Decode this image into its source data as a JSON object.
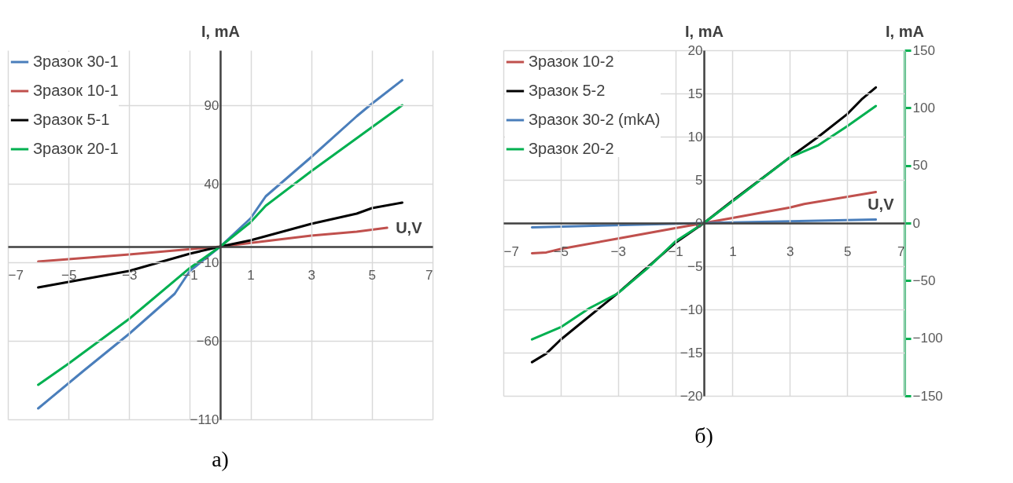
{
  "chart_data": [
    {
      "type": "line",
      "title": "а)",
      "xlabel": "U,V",
      "ylabel": "I, mA",
      "xlim": [
        -7,
        7
      ],
      "xticks": [
        -7,
        -5,
        -3,
        -1,
        1,
        3,
        5,
        7
      ],
      "ylim": [
        -110,
        125
      ],
      "yticks": [
        -110,
        -60,
        -10,
        40,
        90
      ],
      "grid": true,
      "legend": "top left",
      "line_style": "solid",
      "series": [
        {
          "name": "Зразок 30-1",
          "color": "#4a7ebb",
          "x": [
            -6,
            -4.5,
            -3,
            -1.5,
            -1,
            0,
            1,
            1.5,
            3,
            4.5,
            5,
            6
          ],
          "values": [
            -103,
            -79,
            -55.5,
            -30,
            -15.5,
            0,
            18,
            32,
            57,
            83,
            91,
            106
          ]
        },
        {
          "name": "Зразок 10-1",
          "color": "#c0504d",
          "x": [
            -6,
            -3,
            0,
            3,
            4.5,
            5.5
          ],
          "values": [
            -9.5,
            -5,
            0,
            7,
            9.5,
            12
          ]
        },
        {
          "name": "Зразок 5-1",
          "color": "#000000",
          "x": [
            -6,
            -5,
            -3,
            -1,
            0,
            1,
            3,
            4.5,
            5,
            6
          ],
          "values": [
            -26,
            -22.5,
            -15.5,
            -4.5,
            0,
            4,
            14.5,
            21,
            24.5,
            28
          ]
        },
        {
          "name": "Зразок 20-1",
          "color": "#00b050",
          "x": [
            -6,
            -5,
            -3,
            -1,
            0,
            1,
            1.5,
            3,
            5,
            6
          ],
          "values": [
            -88,
            -74.5,
            -46,
            -13.6,
            0,
            15.5,
            26,
            48,
            76,
            90
          ]
        }
      ]
    },
    {
      "type": "line",
      "title": "б)",
      "xlabel": "U,V",
      "ylabel": "I, mA",
      "y2label": "I, mA",
      "xlim": [
        -7,
        7
      ],
      "xticks": [
        -7,
        -5,
        -3,
        -1,
        1,
        3,
        5,
        7
      ],
      "ylim": [
        -20,
        20
      ],
      "yticks": [
        -20,
        -15,
        -10,
        -5,
        0,
        5,
        10,
        15,
        20
      ],
      "y2lim": [
        -150,
        150
      ],
      "y2ticks": [
        -150,
        -100,
        -50,
        0,
        50,
        100,
        150
      ],
      "grid": true,
      "legend": "top left",
      "line_style": "solid",
      "series": [
        {
          "name": "Зразок 10-2",
          "color": "#c0504d",
          "x": [
            -6,
            -5.5,
            -5,
            -3,
            -1,
            0,
            1,
            3,
            3.5,
            6
          ],
          "values": [
            -3.5,
            -3.4,
            -3,
            -1.8,
            -0.6,
            0,
            0.6,
            1.8,
            2.2,
            3.6
          ]
        },
        {
          "name": "Зразок 5-2",
          "color": "#000000",
          "x": [
            -6,
            -5.5,
            -5,
            -3,
            -1,
            0,
            1,
            3,
            4,
            5,
            5.5,
            6
          ],
          "values": [
            -16.1,
            -15.1,
            -13.5,
            -8.1,
            -2.3,
            0,
            2.6,
            7.6,
            10,
            12.6,
            14.3,
            15.7
          ]
        },
        {
          "name": "Зразок 30-2 (mkA)",
          "color": "#4a7ebb",
          "x": [
            -6,
            0,
            6
          ],
          "values": [
            -0.5,
            0,
            0.4
          ]
        },
        {
          "name": "Зразок 20-2",
          "color": "#00b050",
          "axis": "y2",
          "x": [
            -6,
            -5,
            -4,
            -3,
            -2,
            -1,
            0,
            1,
            3,
            4,
            5,
            6
          ],
          "values": [
            -101,
            -90.5,
            -74,
            -61,
            -40,
            -16,
            0,
            18.8,
            57,
            67.6,
            84,
            101.6
          ]
        }
      ]
    }
  ]
}
